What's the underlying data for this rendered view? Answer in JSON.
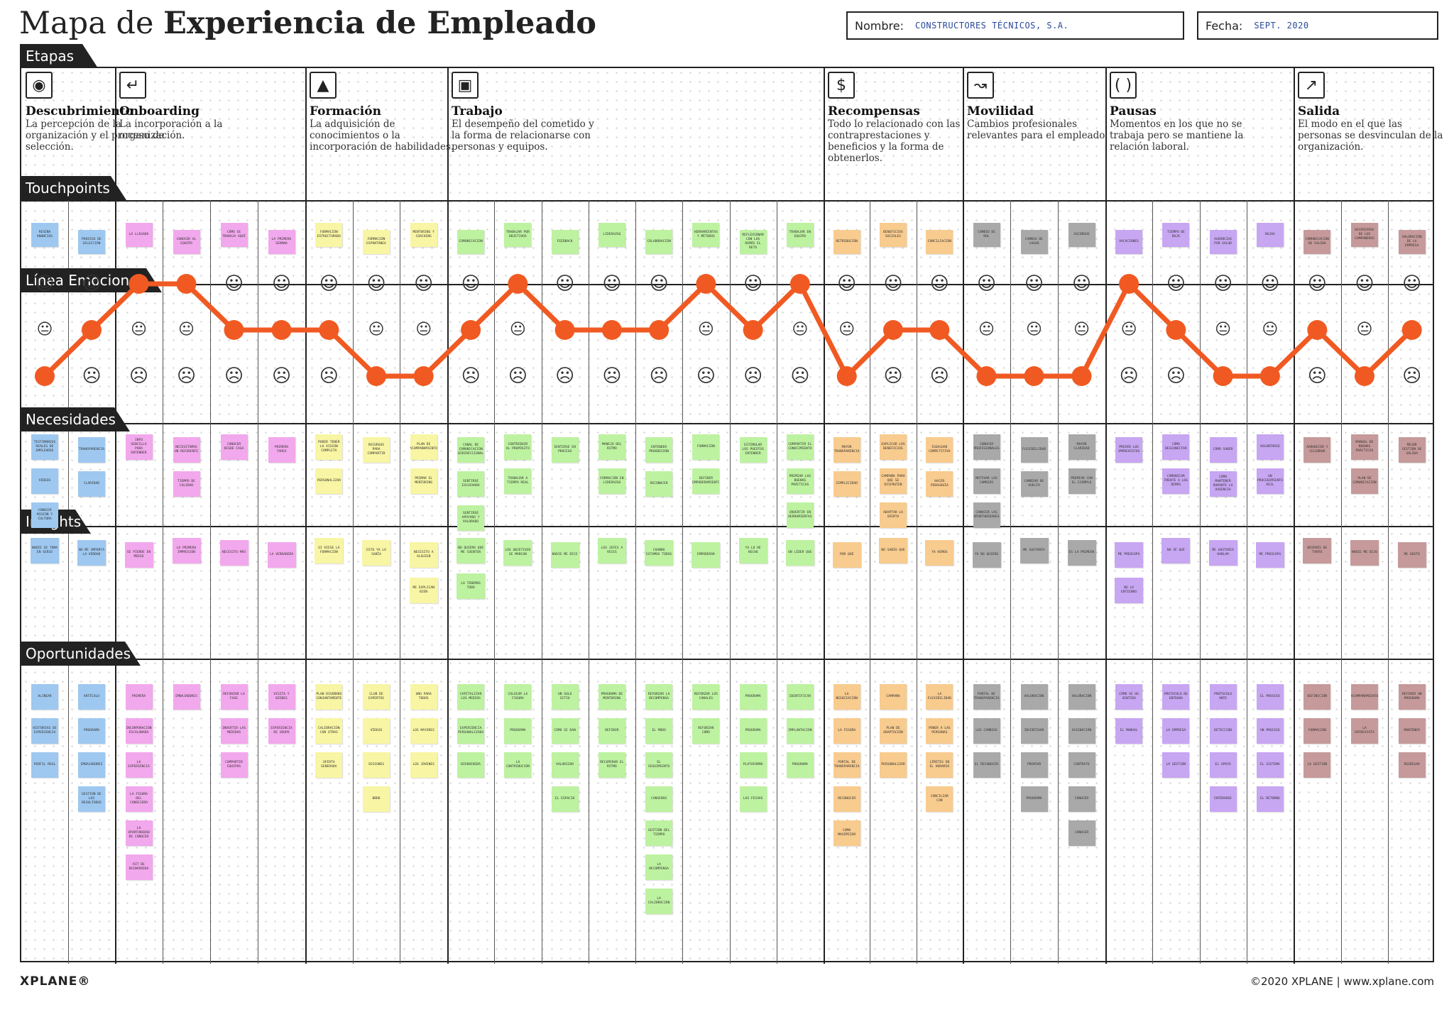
{
  "title": {
    "light": "Mapa de ",
    "bold": "Experiencia de Empleado"
  },
  "header": {
    "name_label": "Nombre:",
    "name_value": "CONSTRUCTORES TÉCNICOS, S.A.",
    "date_label": "Fecha:",
    "date_value": "SEPT. 2020"
  },
  "rows": {
    "etapas": "Etapas",
    "touchpoints": "Touchpoints",
    "linea": "Línea Emocional",
    "necesidades": "Necesidades",
    "insights": "Insights",
    "oportunidades": "Oportunidades"
  },
  "colors": {
    "purple": "#d9a8f0",
    "blue": "#9ec8f0",
    "pink": "#f2a8ec",
    "yellow": "#f8f5a4",
    "green": "#bdf2a0",
    "orange": "#f8cb8e",
    "gray": "#a9a9a9",
    "violet": "#c7a6f2",
    "rose": "#c69a9a",
    "line": "#f05a22"
  },
  "stages": [
    {
      "name": "Descubrimiento",
      "desc": "La percepción de la organización y el proceso de selección.",
      "icon": "eye-icon",
      "glyph": "◉",
      "color": "blue",
      "cols": 2
    },
    {
      "name": "Onboarding",
      "desc": "La incorporación a la organización.",
      "icon": "enter-icon",
      "glyph": "↵",
      "color": "pink",
      "cols": 4
    },
    {
      "name": "Formación",
      "desc": "La adquisición de conocimientos o la incorporación de habilidades.",
      "icon": "graduation-cap-icon",
      "glyph": "▲",
      "color": "yellow",
      "cols": 3
    },
    {
      "name": "Trabajo",
      "desc": "El desempeño del cometido y la forma de relacionarse con personas y equipos.",
      "icon": "briefcase-icon",
      "glyph": "▣",
      "color": "green",
      "cols": 8
    },
    {
      "name": "Recompensas",
      "desc": "Todo lo relacionado con las contraprestaciones y beneficios y la forma de obtenerlos.",
      "icon": "dollar-icon",
      "glyph": "$",
      "color": "orange",
      "cols": 3
    },
    {
      "name": "Movilidad",
      "desc": "Cambios profesionales relevantes para el empleado.",
      "icon": "path-icon",
      "glyph": "↝",
      "color": "gray",
      "cols": 3
    },
    {
      "name": "Pausas",
      "desc": "Momentos en los que no se trabaja pero se mantiene la relación laboral.",
      "icon": "pause-icon",
      "glyph": "( )",
      "color": "violet",
      "cols": 4
    },
    {
      "name": "Salida",
      "desc": "El modo en el que las personas se desvinculan de la organización.",
      "icon": "exit-icon",
      "glyph": "↗",
      "color": "rose",
      "cols": 3
    }
  ],
  "emotional_levels": [
    0,
    1,
    2,
    2,
    1,
    1,
    1,
    0,
    0,
    1,
    2,
    1,
    1,
    1,
    2,
    1,
    2,
    0,
    1,
    1,
    0,
    0,
    0,
    2,
    1,
    0,
    0,
    1,
    0,
    1
  ],
  "touchpoints": [
    "RESEÑA ANUNCIOS",
    "PROCESO DE SELECCIÓN",
    "LA LLEGADA",
    "CONOCER AL EQUIPO",
    "CÓMO SE TRABAJA AQUÍ",
    "LA PRIMERA SEMANA",
    "FORMACIÓN ESTRUCTURADA",
    "FORMACIÓN ESPONTÁNEA",
    "MENTORING Y COACHING",
    "COMUNICACIÓN",
    "TRABAJAR POR OBJETIVOS",
    "FEEDBACK",
    "LIDERAZGO",
    "COLABORACIÓN",
    "HERRAMIENTAS Y MÉTODOS",
    "REFLEXIONAR CON LOS DEMÁS EL RETO",
    "TRABAJAR EN EQUIPO",
    "RETRIBUCIÓN",
    "BENEFICIOS SOCIALES",
    "CONCILIACIÓN",
    "CAMBIO DE ROL",
    "CAMBIO DE LUGAR",
    "ASCENSOS",
    "VACACIONES",
    "TIEMPO DE BAJA",
    "AUSENCIAS POR SALUD",
    "BAJAS",
    "COMUNICACIÓN DE SALIDA",
    "DESPEDIRSE DE LOS COMPAÑEROS",
    "VALORACIÓN DE LA EMPRESA"
  ],
  "needs": [
    [
      "TESTIMONIOS REALES DE EMPLEADOS",
      "VÍDEOS",
      "CONOCER MISIÓN Y CULTURA"
    ],
    [
      "TRANSPARENCIA",
      "CLARIDAD"
    ],
    [
      "INFO SENCILLA PARA ENTENDER"
    ],
    [
      "NECESITAMOS UN REFERENTE",
      "TIEMPO DE CALIDAD"
    ],
    [
      "CONOCER DESDE CASA"
    ],
    [
      "PRIMERA TAREA"
    ],
    [
      "PODER TENER LA VISIÓN COMPLETA",
      "PERSONALIZAR"
    ],
    [
      "RECURSOS PARA COMPARTIR"
    ],
    [
      "PLAN DE ACOMPAÑAMIENTO",
      "PRIMAR EL MENTORING"
    ],
    [
      "CANAL DE COMUNICACIÓN BIDIRECCIONAL",
      "SENTIRSE ESCUCHADO",
      "SENTIRSE APOYADO Y VALORADO"
    ],
    [
      "CONTRIBUIR AL PROPÓSITO",
      "TRABAJAR A TIEMPO REAL"
    ],
    [
      "SENTIRSE EN PROCESO"
    ],
    [
      "MANEJO DEL RITMO",
      "FORMACIÓN EN LIDERAZGO"
    ],
    [
      "ENTENDER PROGRESIÓN",
      "RECONOCER"
    ],
    [
      "FORMACIÓN",
      "DEFINIR EMPODERAMIENTO"
    ],
    [
      "ESTIMULAR LOS PUESTOS ENTENDER"
    ],
    [
      "COMPARTIR EL CONOCIMIENTO",
      "PREMIAR LAS BUENAS PRÁCTICAS",
      "INVERTIR EN HERRAMIENTAS"
    ],
    [
      "MAYOR TRANSPARENCIA",
      "SIMPLICIDAD"
    ],
    [
      "EXPLICAR LOS BENEFICIOS",
      "CAMPAÑA PARA QUE SE DISFRUTEN",
      "ADAPTAR LA OFERTA"
    ],
    [
      "IGUALDAD COMPETITIVA",
      "HACER PEDAGOGÍA"
    ],
    [
      "CONOCER PROFESIONALES",
      "MOTIVAR LOS CAMBIOS",
      "CONOCER LAS OPORTUNIDADES"
    ],
    [
      "FLEXIBILIDAD",
      "CAMBIAR DE VUELTA"
    ],
    [
      "MAYOR CLARIDAD",
      "PREMIAR CON EL EJEMPLO"
    ],
    [
      "PREVER LOS IMPREVISTOS"
    ],
    [
      "CÓMO DESCONECTAR",
      "COMUNICAR FRENTE A LOS DEMÁS"
    ],
    [
      "CÓMO SABER",
      "CÓMO MANTENER DURANTE LA AUSENCIA"
    ],
    [
      "VOLUNTARIO",
      "UN PROCEDIMIENTO ÁGIL"
    ],
    [
      "AGRADECER Y CELEBRAR"
    ],
    [
      "MANUAL DE BUENAS PRÁCTICAS",
      "PLAN DE COMUNICACIÓN"
    ],
    [
      "MEJOR GESTIÓN DE SALIDA"
    ]
  ],
  "insights": [
    [
      "NADIE SE TOMA EN SERIO"
    ],
    [
      "NO ME IMPORTA LA VERDAD"
    ],
    [
      "SE PIERDE EN MEDIO"
    ],
    [
      "LA PRIMERA IMPRESIÓN"
    ],
    [
      "NECESITO MÁS"
    ],
    [
      "LA VERDADERA"
    ],
    [
      "SI VIESE LA FORMACIÓN"
    ],
    [
      "ESTO YA LO SABÍA"
    ],
    [
      "NECESITO A ALGUIEN",
      "ME EXPLICAN BIEN"
    ],
    [
      "NO QUIERO QUE ME CUENTEN",
      "LO TENEMOS TODO"
    ],
    [
      "LOS OBJETIVOS SE MARCAN"
    ],
    [
      "NADIE ME DICE"
    ],
    [
      "LOS JEFES A VECES"
    ],
    [
      "CUANDO ESTAMOS TODOS"
    ],
    [
      "EMPODERAR"
    ],
    [
      "YA LO HE HECHO"
    ],
    [
      "UN LÍDER QUE"
    ],
    [
      "POR QUÉ"
    ],
    [
      "NO SABÍA QUE"
    ],
    [
      "YA HEMOS"
    ],
    [
      "YO NO QUIERO"
    ],
    [
      "ME GUSTARÍA"
    ],
    [
      "ES LA PRIMERA"
    ],
    [
      "ME PREOCUPA",
      "NO LO ENTIENDO"
    ],
    [
      "NO SÉ QUÉ"
    ],
    [
      "ME GUSTARÍA HABLAR"
    ],
    [
      "ME PREOCUPA"
    ],
    [
      "DESPUÉS DE TANTO"
    ],
    [
      "NADIE ME DIJO"
    ],
    [
      "ME GUSTÓ"
    ]
  ],
  "opportunities": [
    [
      "ALINEAR",
      "HISTORIAS DE EXPERIENCIA",
      "PERFIL REAL"
    ],
    [
      "ARTÍCULO",
      "PROGRAMA",
      "EMBAJADORES",
      "GESTIÓN DE LOS RESULTADOS"
    ],
    [
      "PRIMERA",
      "INCORPORACIÓN ESCALONADA",
      "LA EXPERIENCIA",
      "LA FIGURA DEL CONSEJERO",
      "LA OPORTUNIDAD DE CONOCER",
      "KIT DE BIENVENIDA"
    ],
    [
      "EMBAJADORES"
    ],
    [
      "REFORZAR LA FASE",
      "INVERTIR LAS MEDIDAS",
      "COMPARTIR EQUIPOS"
    ],
    [
      "VISITA Y BIENES",
      "EXPERIENCIA DE GRUPO"
    ],
    [
      "PLAN DISEÑADO CONJUNTAMENTE",
      "CALIBRACIÓN CON OTRAS",
      "OFERTA GENERADA"
    ],
    [
      "CLUB DE EXPERTOS",
      "VÍDEOS",
      "SESIONES",
      "BBDD"
    ],
    [
      "UNO PARA TODOS",
      "LOS MAYORES",
      "LOS JÓVENES"
    ],
    [
      "CAPITALIZAR LOS MEDIOS",
      "EXPERIENCIA PERSONALIZADA",
      "BIENVENIDA"
    ],
    [
      "COLOCAR LA FIGURA",
      "PROGRAMA",
      "LA CONTRIBUCIÓN"
    ],
    [
      "UN SOLO SITIO",
      "CÓMO SE DAN",
      "VALORIZAR",
      "EL ESPACIO"
    ],
    [
      "PROGRAMA DE MENTORING",
      "DEFINIR",
      "RECUPERAR EL RITMO"
    ],
    [
      "REFORZAR LA RECOMPENSA",
      "EL MODO",
      "EL SEGUIMIENTO",
      "CONSENSO",
      "GESTIÓN DEL TIEMPO",
      "LA RECOMPENSA",
      "LA CALIBRACIÓN"
    ],
    [
      "REFORZAR LOS CANALES",
      "REFORZAR CÓMO"
    ],
    [
      "PROGRAMA",
      "PROGRAMA",
      "PLATAFORMA",
      "LAS FECHAS"
    ],
    [
      "IDENTIFICAR",
      "IMPLANTACIÓN",
      "PROGRAMA"
    ],
    [
      "LA NEGOCIACIÓN",
      "LA FIGURA",
      "PORTAL DE TRANSPARENCIA",
      "RECONOCER",
      "COMO MAXIMIZAR"
    ],
    [
      "CAMPAÑA",
      "PLAN DE ADAPTACIÓN",
      "PERSONALIZAR"
    ],
    [
      "LA FLEXIBILIDAD",
      "PONER A LAS PERSONAS",
      "LÍMITES EN EL HORARIO",
      "CONCILIAR CON"
    ],
    [
      "PORTAL DE TRANSPARENCIA",
      "LOS CAMBIOS",
      "EL RECONOCER"
    ],
    [
      "VALORACIÓN",
      "INCENTIVAR",
      "PREMIAR",
      "PROGRAMA"
    ],
    [
      "VALORACIÓN",
      "ASIGNACIÓN",
      "CONTRATO",
      "CONOCER",
      "CONOCER"
    ],
    [
      "CÓMO SE HA SENTIDO",
      "EL MANUAL"
    ],
    [
      "PROTOCOLO DE ENTRADA",
      "LA EMPRESA",
      "LA GESTIÓN"
    ],
    [
      "PROTOCOLO ANTE",
      "DETECCIÓN",
      "EL APOYO",
      "ENTERARSE"
    ],
    [
      "EL PROCESO",
      "UN PROCESO",
      "EL SISTEMA",
      "EL RETORNO"
    ],
    [
      "DEFINICIÓN",
      "FORMACIÓN",
      "LA GESTIÓN"
    ],
    [
      "ACOMPAÑAMIENTO",
      "LA ENTREVISTA"
    ],
    [
      "DEFINIR UN PROGRAMA",
      "MANTENER",
      "REGRESAR"
    ]
  ],
  "footer": {
    "logo": "XPLANE®",
    "copyright": "©2020 XPLANE | www.xplane.com"
  }
}
